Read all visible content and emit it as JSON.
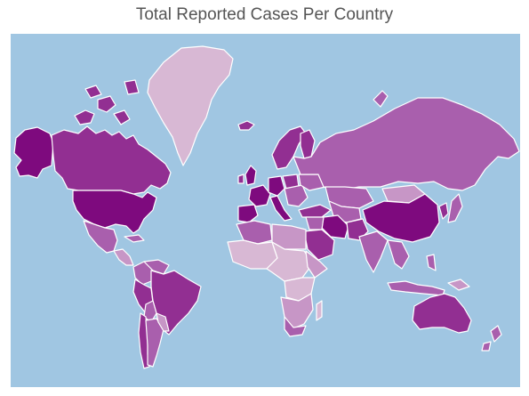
{
  "title": "Total Reported Cases Per Country",
  "colors": {
    "ocean": "#a0c6e2",
    "level_1": "#d8b8d4",
    "level_2": "#c796c6",
    "level_3": "#a95fad",
    "level_4": "#922f92",
    "level_5": "#7e0a7e"
  }
}
